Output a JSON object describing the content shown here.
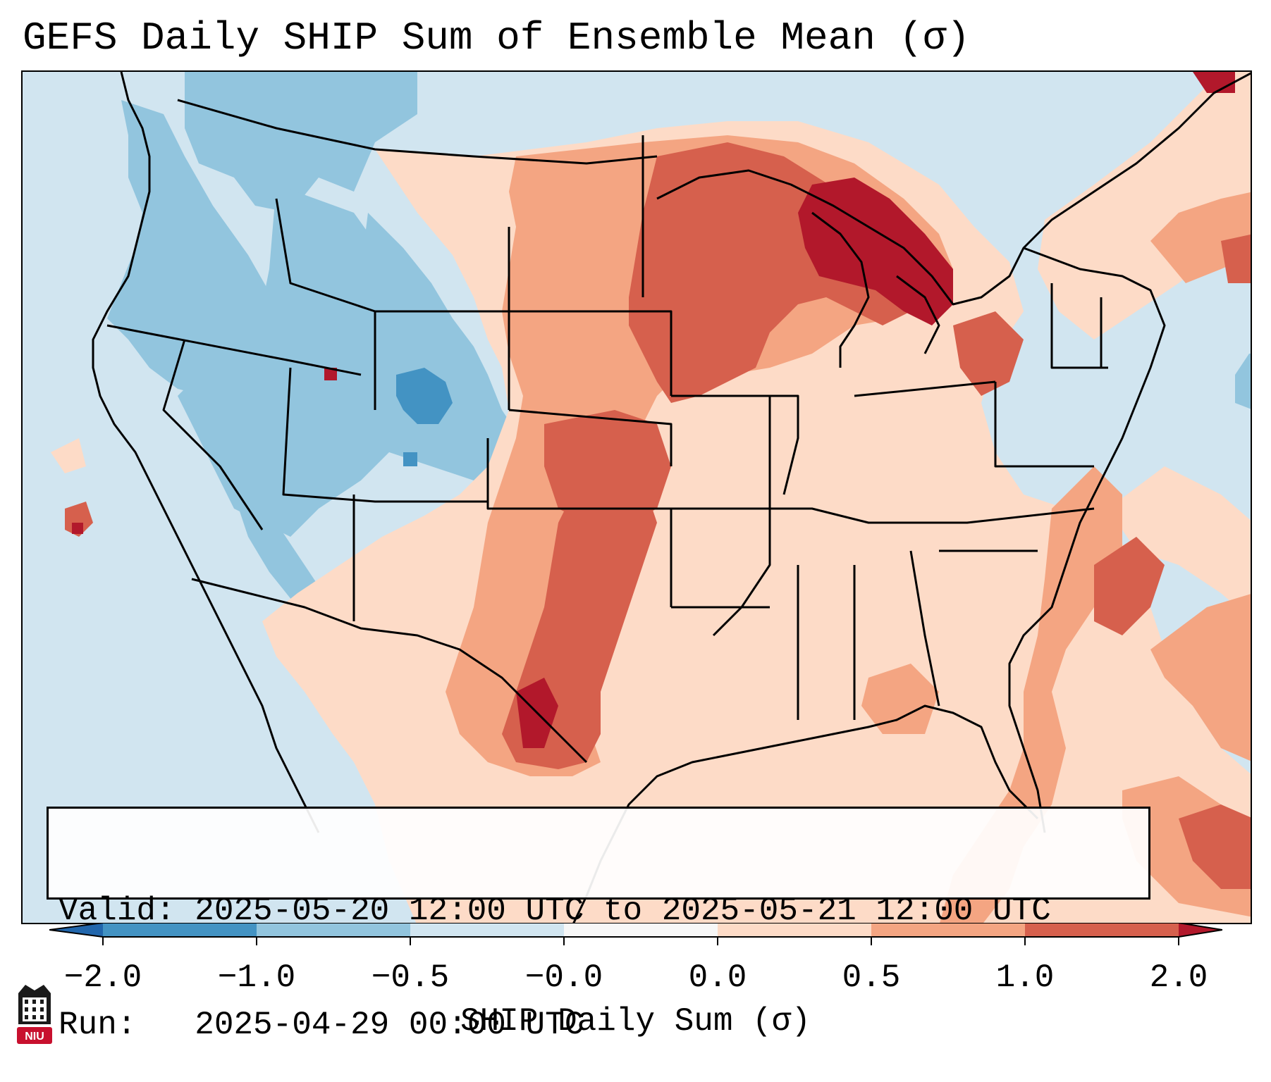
{
  "title": "GEFS Daily SHIP Sum of Ensemble Mean (σ)",
  "info": {
    "valid_line": "Valid: 2025-05-20 12:00 UTC to 2025-05-21 12:00 UTC",
    "run_line": "Run:   2025-04-29 00:00 UTC"
  },
  "colorbar": {
    "label": "SHIP Daily Sum (σ)",
    "ticks": [
      "−2.0",
      "−1.0",
      "−0.5",
      "−0.0",
      "0.0",
      "0.5",
      "1.0",
      "2.0"
    ],
    "colors": {
      "below_min": "#2166ac",
      "neg_2_to_1": "#4393c3",
      "neg_1_to_05": "#92c5de",
      "neg_05_to_0": "#d1e5f0",
      "zero_band": "#f7f7f7",
      "pos_0_to_05": "#fddbc7",
      "pos_05_to_1": "#f4a582",
      "pos_1_to_2": "#d6604d",
      "above_max": "#b2182b"
    }
  },
  "logo": {
    "text": "NIU",
    "icon": "niu-huskie-logo-icon"
  }
}
